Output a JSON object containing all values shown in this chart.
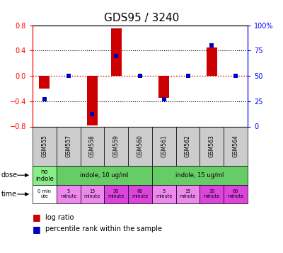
{
  "title": "GDS95 / 3240",
  "samples": [
    "GSM555",
    "GSM557",
    "GSM558",
    "GSM559",
    "GSM560",
    "GSM561",
    "GSM562",
    "GSM563",
    "GSM564"
  ],
  "log_ratio": [
    -0.2,
    0.0,
    -0.78,
    0.75,
    0.0,
    -0.35,
    0.0,
    0.45,
    0.0
  ],
  "percentile": [
    27,
    50,
    12,
    70,
    50,
    27,
    50,
    80,
    50
  ],
  "ylim": [
    -0.8,
    0.8
  ],
  "yticks_left": [
    -0.8,
    -0.4,
    0.0,
    0.4,
    0.8
  ],
  "yticks_right": [
    0,
    25,
    50,
    75,
    100
  ],
  "bar_color": "#cc0000",
  "dot_color": "#0000bb",
  "background_color": "#ffffff",
  "plot_bg": "#ffffff",
  "dose_spans": [
    1,
    4,
    4
  ],
  "dose_labels": [
    "no\nindole",
    "indole, 10 ug/ml",
    "indole, 15 ug/ml"
  ],
  "dose_colors": [
    "#88ee88",
    "#66cc66",
    "#66cc66"
  ],
  "time_labels": [
    "0 min\nute",
    "5\nminute",
    "15\nminute",
    "30\nminute",
    "60\nminute",
    "5\nminute",
    "15\nminute",
    "30\nminute",
    "60\nminute"
  ],
  "time_colors": [
    "#ffffff",
    "#ee88ee",
    "#ee88ee",
    "#dd44dd",
    "#dd44dd",
    "#ee88ee",
    "#ee88ee",
    "#dd44dd",
    "#dd44dd"
  ],
  "sample_bg": "#cccccc",
  "zero_line_color": "#cc0000",
  "hline_color": "#000000",
  "title_fontsize": 11,
  "bar_width": 0.45
}
